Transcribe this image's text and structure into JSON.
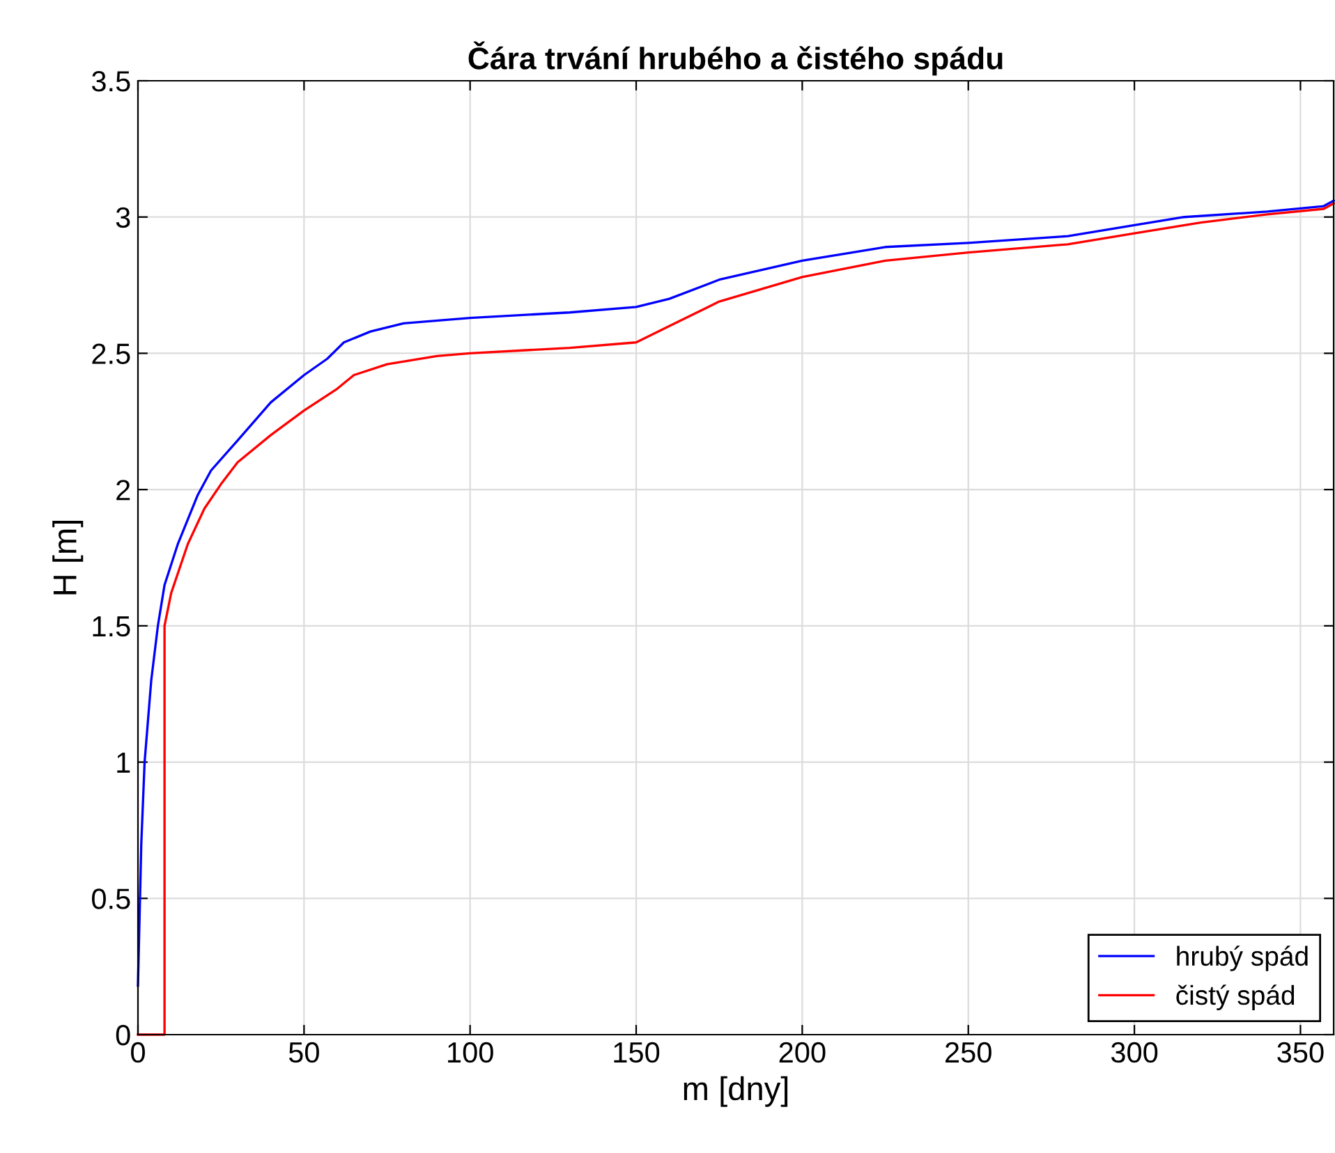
{
  "chart_data": {
    "type": "line",
    "title": "Čára trvání hrubého a čistého spádu",
    "xlabel": "m [dny]",
    "ylabel": "H [m]",
    "xlim": [
      0,
      360
    ],
    "ylim": [
      0,
      3.5
    ],
    "xticks": [
      0,
      50,
      100,
      150,
      200,
      250,
      300,
      350
    ],
    "yticks": [
      0,
      0.5,
      1,
      1.5,
      2,
      2.5,
      3,
      3.5
    ],
    "grid": true,
    "legend": "bottom right",
    "line_style": "solid",
    "series": [
      {
        "name": "hrubý spád",
        "color": "#0000ff",
        "x": [
          0,
          1,
          2,
          4,
          6,
          8,
          12,
          18,
          22,
          30,
          40,
          50,
          57,
          62,
          70,
          80,
          100,
          130,
          150,
          160,
          175,
          200,
          225,
          250,
          280,
          300,
          315,
          340,
          357,
          360
        ],
        "values": [
          0.18,
          0.7,
          1.0,
          1.3,
          1.5,
          1.65,
          1.8,
          1.98,
          2.07,
          2.18,
          2.32,
          2.42,
          2.48,
          2.54,
          2.58,
          2.61,
          2.63,
          2.65,
          2.67,
          2.7,
          2.77,
          2.84,
          2.89,
          2.905,
          2.93,
          2.97,
          3.0,
          3.02,
          3.04,
          3.06
        ]
      },
      {
        "name": "čistý spád",
        "color": "#ff0000",
        "x": [
          0,
          8,
          8,
          10,
          15,
          20,
          25,
          30,
          40,
          50,
          60,
          65,
          75,
          90,
          100,
          130,
          150,
          160,
          175,
          200,
          225,
          250,
          280,
          300,
          320,
          340,
          357,
          360
        ],
        "values": [
          0,
          0,
          1.5,
          1.62,
          1.8,
          1.93,
          2.02,
          2.1,
          2.2,
          2.29,
          2.37,
          2.42,
          2.46,
          2.49,
          2.5,
          2.52,
          2.54,
          2.6,
          2.69,
          2.78,
          2.84,
          2.87,
          2.9,
          2.94,
          2.98,
          3.01,
          3.03,
          3.05
        ]
      }
    ]
  }
}
